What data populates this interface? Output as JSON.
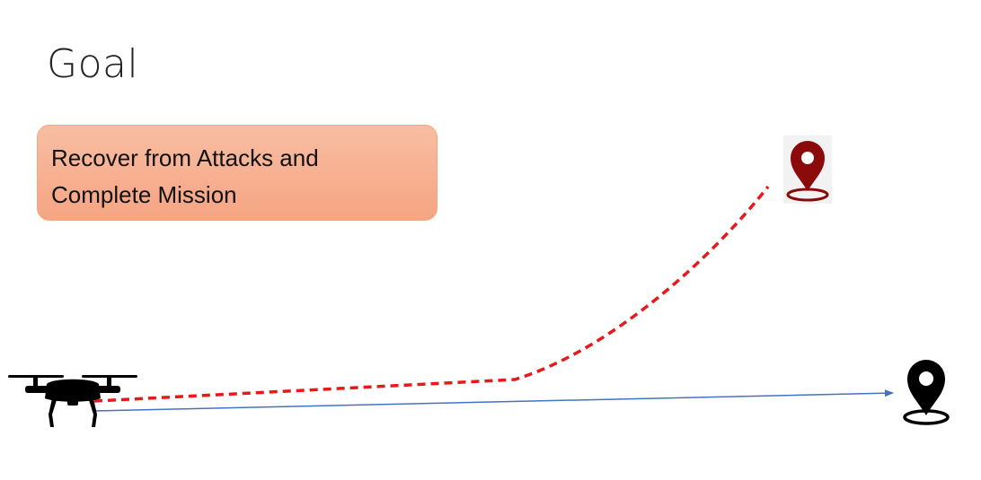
{
  "slide": {
    "title": "Goal",
    "box": {
      "lines": [
        "Recover from Attacks and",
        "Complete Mission"
      ]
    }
  },
  "colors": {
    "box_fill_top": "#f8bda2",
    "box_fill_bottom": "#f6a583",
    "attack_path": "#e8181b",
    "planned_path": "#4472c4",
    "attack_destination_pin": "#8b0a0a",
    "planned_destination_pin": "#000000",
    "drone": "#000000"
  },
  "icons": {
    "drone": "drone-icon",
    "attack_destination": "map-pin-icon",
    "planned_destination": "map-pin-icon"
  }
}
